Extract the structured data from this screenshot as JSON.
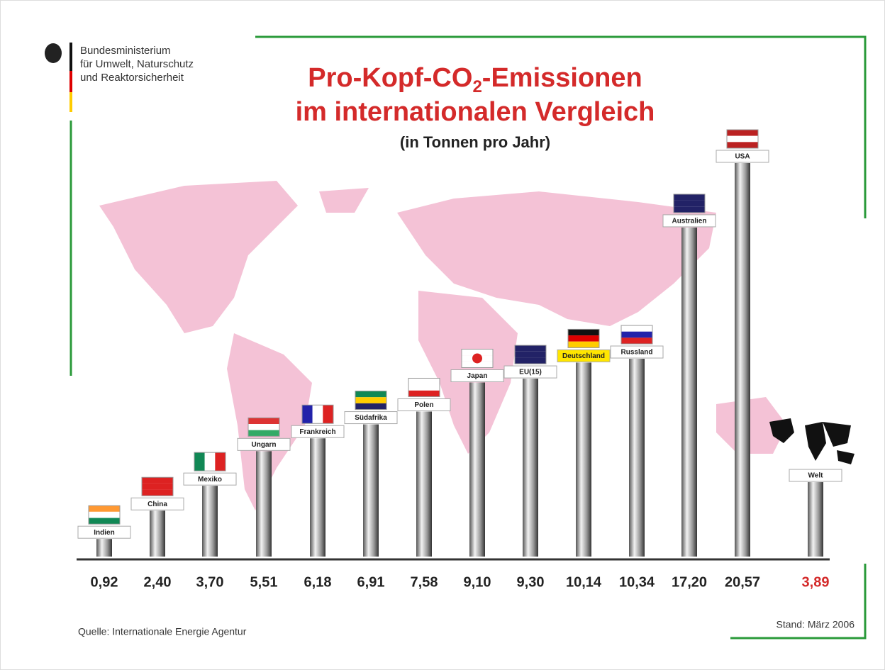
{
  "header": {
    "lines": [
      "Bundesministerium",
      "für Umwelt, Naturschutz",
      "und Reaktorsicherheit"
    ]
  },
  "chart_data": {
    "type": "bar",
    "title": {
      "parts": [
        "Pro-Kopf-CO",
        "2",
        "-Emissionen"
      ],
      "line2": "im internationalen Vergleich"
    },
    "subtitle": "(in Tonnen pro Jahr)",
    "categories": [
      "Indien",
      "China",
      "Mexiko",
      "Ungarn",
      "Frankreich",
      "Südafrika",
      "Polen",
      "Japan",
      "EU(15)",
      "Deutschland",
      "Russland",
      "Australien",
      "USA",
      "Welt"
    ],
    "values": [
      0.92,
      2.4,
      3.7,
      5.51,
      6.18,
      6.91,
      7.58,
      9.1,
      9.3,
      10.14,
      10.34,
      17.2,
      20.57,
      3.89
    ],
    "value_labels": [
      "0,92",
      "2,40",
      "3,70",
      "5,51",
      "6,18",
      "6,91",
      "7,58",
      "9,10",
      "9,30",
      "10,14",
      "10,34",
      "17,20",
      "20,57",
      "3,89"
    ],
    "value_label_colors": [
      "#222",
      "#222",
      "#222",
      "#222",
      "#222",
      "#222",
      "#222",
      "#222",
      "#222",
      "#222",
      "#222",
      "#222",
      "#222",
      "#d42a2a"
    ],
    "title_color": "#d42a2a"
  },
  "footer": {
    "source": "Quelle: Internationale Energie Agentur",
    "date": "Stand: März 2006"
  }
}
